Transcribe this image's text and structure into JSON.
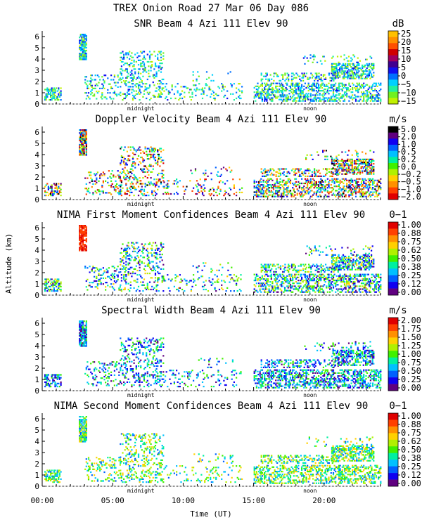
{
  "figure": {
    "title": "TREX Onion Road  27 Mar 06 Day 086",
    "ylabel": "Altitude (km)",
    "xlabel": "Time (UT)",
    "x_ticks": [
      "00:00",
      "05:00",
      "10:00",
      "15:00",
      "20:00"
    ],
    "midnight_label": "midnight",
    "noon_label": "noon"
  },
  "chart_data": [
    {
      "type": "heatmap",
      "title": "SNR Beam 4 Azi 111 Elev 90",
      "ylim": [
        0,
        6.5
      ],
      "y_ticks": [
        "0",
        "1",
        "2",
        "3",
        "4",
        "5",
        "6"
      ],
      "xlim_hours": [
        0,
        24
      ],
      "colorbar": {
        "unit": "dB",
        "labels": [
          "25",
          "20",
          "15",
          "10",
          "5",
          "0",
          "−5",
          "−10",
          "−15"
        ],
        "colors": [
          "#ffc000",
          "#ff9000",
          "#ff5000",
          "#d00000",
          "#a00060",
          "#400090",
          "#1010f0",
          "#0070ff",
          "#00d0ff",
          "#20f0a0",
          "#70f020",
          "#c0f000"
        ]
      }
    },
    {
      "type": "heatmap",
      "title": "Doppler Velocity Beam 4 Azi 111 Elev 90",
      "ylim": [
        0,
        6.5
      ],
      "y_ticks": [
        "0",
        "1",
        "2",
        "3",
        "4",
        "5",
        "6"
      ],
      "xlim_hours": [
        0,
        24
      ],
      "colorbar": {
        "unit": "m/s",
        "labels": [
          "5.0",
          "2.0",
          "1.0",
          "0.5",
          "0.2",
          "0.0",
          "−0.2",
          "−0.5",
          "−1.0",
          "−2.0"
        ],
        "colors": [
          "#000000",
          "#600080",
          "#1000f0",
          "#0060ff",
          "#00c0ff",
          "#00f0a0",
          "#40f000",
          "#b0f000",
          "#ffd000",
          "#ff9000",
          "#ff4000",
          "#e00000"
        ]
      }
    },
    {
      "type": "heatmap",
      "title": "NIMA First Moment Confidences Beam 4 Azi 111 Elev 90",
      "ylim": [
        0,
        6.5
      ],
      "y_ticks": [
        "0",
        "1",
        "2",
        "3",
        "4",
        "5",
        "6"
      ],
      "xlim_hours": [
        0,
        24
      ],
      "colorbar": {
        "unit": "0−1",
        "labels": [
          "1.00",
          "0.88",
          "0.75",
          "0.62",
          "0.50",
          "0.38",
          "0.25",
          "0.12",
          "0.00"
        ],
        "colors": [
          "#e00000",
          "#ff4000",
          "#ff9000",
          "#ffd000",
          "#b0f000",
          "#40f000",
          "#00f0a0",
          "#00c0ff",
          "#0060ff",
          "#1000f0",
          "#600080"
        ]
      }
    },
    {
      "type": "heatmap",
      "title": "Spectral Width Beam 4 Azi 111 Elev 90",
      "ylim": [
        0,
        6.5
      ],
      "y_ticks": [
        "0",
        "1",
        "2",
        "3",
        "4",
        "5",
        "6"
      ],
      "xlim_hours": [
        0,
        24
      ],
      "colorbar": {
        "unit": "m/s",
        "labels": [
          "2.00",
          "1.75",
          "1.50",
          "1.25",
          "1.00",
          "0.75",
          "0.50",
          "0.25",
          "0.00"
        ],
        "colors": [
          "#e00000",
          "#ff4000",
          "#ff9000",
          "#ffd000",
          "#b0f000",
          "#40f000",
          "#00f0a0",
          "#00c0ff",
          "#0060ff",
          "#1000f0",
          "#600080"
        ]
      }
    },
    {
      "type": "heatmap",
      "title": "NIMA Second Moment Confidences Beam 4 Azi 111 Elev 90",
      "ylim": [
        0,
        6.5
      ],
      "y_ticks": [
        "0",
        "1",
        "2",
        "3",
        "4",
        "5",
        "6"
      ],
      "xlim_hours": [
        0,
        24
      ],
      "colorbar": {
        "unit": "0−1",
        "labels": [
          "1.00",
          "0.88",
          "0.75",
          "0.62",
          "0.50",
          "0.38",
          "0.25",
          "0.12",
          "0.00"
        ],
        "colors": [
          "#e00000",
          "#ff4000",
          "#ff9000",
          "#ffd000",
          "#b0f000",
          "#40f000",
          "#00f0a0",
          "#00c0ff",
          "#0060ff",
          "#1000f0",
          "#600080"
        ]
      }
    }
  ]
}
